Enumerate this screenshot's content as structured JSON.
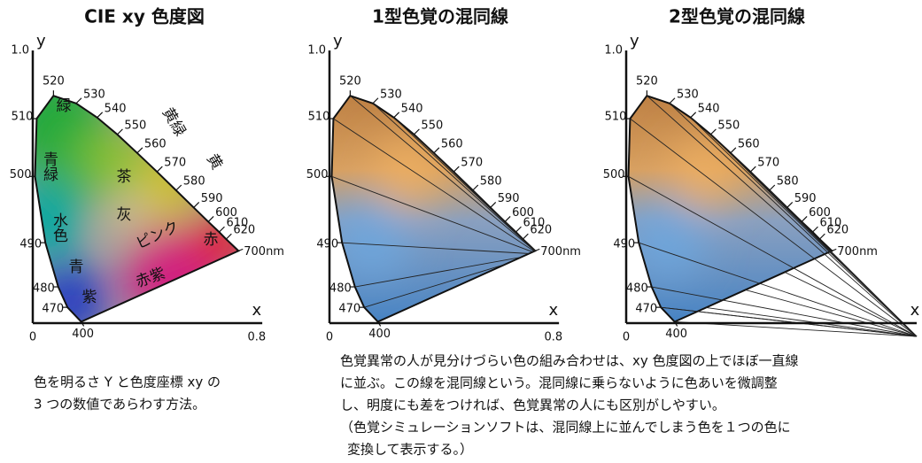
{
  "panels": [
    {
      "title": "CIE xy 色度図",
      "y_label": "y",
      "x_label": "x",
      "y_tick": "1.0",
      "x_ticks": [
        "0",
        "0.8"
      ],
      "wavelengths": [
        "520",
        "530",
        "540",
        "550",
        "560",
        "570",
        "580",
        "590",
        "600",
        "610",
        "620",
        "700nm",
        "510",
        "500",
        "490",
        "480",
        "470",
        "400"
      ],
      "regions": [
        "緑",
        "黄緑",
        "黄",
        "青緑",
        "茶",
        "灰",
        "水色",
        "ピンク",
        "赤",
        "青",
        "紫",
        "赤紫"
      ]
    },
    {
      "title": "1型色覚の混同線",
      "y_label": "y",
      "x_label": "x",
      "y_tick": "1.0",
      "x_ticks": [
        "0",
        "0.8"
      ],
      "wavelengths": [
        "520",
        "530",
        "540",
        "550",
        "560",
        "570",
        "580",
        "590",
        "600",
        "610",
        "620",
        "700nm",
        "510",
        "500",
        "490",
        "480",
        "470",
        "400"
      ]
    },
    {
      "title": "2型色覚の混同線",
      "y_label": "y",
      "x_label": "x",
      "y_tick": "1.0",
      "x_ticks": [
        "0"
      ],
      "wavelengths": [
        "520",
        "530",
        "540",
        "550",
        "560",
        "570",
        "580",
        "590",
        "600",
        "610",
        "620",
        "700nm",
        "510",
        "500",
        "490",
        "480",
        "470",
        "400"
      ]
    }
  ],
  "captions": {
    "left": [
      "色を明るさ Y と色度座標 xy の",
      "3 つの数値であらわす方法。"
    ],
    "right": [
      "色覚異常の人が見分けづらい色の組み合わせは、xy 色度図の上でほぼ一直線",
      "に並ぶ。この線を混同線という。混同線に乗らないように色あいを微調整",
      "し、明度にも差をつければ、色覚異常の人にも区別がしやすい。",
      "（色覚シミュレーションソフトは、混同線上に並んでしまう色を１つの色に",
      "変換して表示する。）"
    ]
  }
}
